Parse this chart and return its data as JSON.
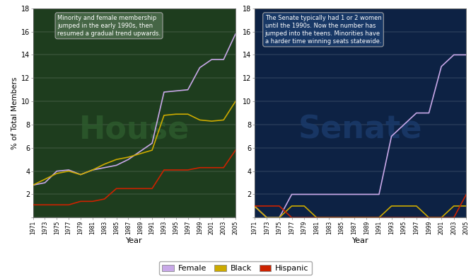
{
  "years": [
    1971,
    1973,
    1975,
    1977,
    1979,
    1981,
    1983,
    1985,
    1987,
    1989,
    1991,
    1993,
    1995,
    1997,
    1999,
    2001,
    2003,
    2005
  ],
  "house_female": [
    2.8,
    3.0,
    4.0,
    4.1,
    3.7,
    4.1,
    4.3,
    4.5,
    5.0,
    5.7,
    6.4,
    10.8,
    10.9,
    11.0,
    12.9,
    13.6,
    13.6,
    15.8
  ],
  "house_black": [
    2.8,
    3.3,
    3.8,
    4.0,
    3.7,
    4.1,
    4.6,
    5.0,
    5.2,
    5.5,
    5.8,
    8.8,
    8.9,
    8.9,
    8.4,
    8.3,
    8.4,
    10.0
  ],
  "house_hispanic": [
    1.1,
    1.1,
    1.1,
    1.1,
    1.4,
    1.4,
    1.6,
    2.5,
    2.5,
    2.5,
    2.5,
    4.1,
    4.1,
    4.1,
    4.3,
    4.3,
    4.3,
    5.8
  ],
  "senate_female": [
    1.0,
    0.0,
    0.0,
    2.0,
    2.0,
    2.0,
    2.0,
    2.0,
    2.0,
    2.0,
    2.0,
    7.0,
    8.0,
    9.0,
    9.0,
    13.0,
    14.0,
    14.0
  ],
  "senate_black": [
    1.0,
    0.0,
    0.0,
    1.0,
    1.0,
    0.0,
    0.0,
    0.0,
    0.0,
    0.0,
    0.0,
    1.0,
    1.0,
    1.0,
    0.0,
    0.0,
    1.0,
    1.0
  ],
  "senate_hispanic": [
    1.0,
    1.0,
    1.0,
    0.0,
    0.0,
    0.0,
    0.0,
    0.0,
    0.0,
    0.0,
    0.0,
    0.0,
    0.0,
    0.0,
    0.0,
    0.0,
    0.0,
    2.0
  ],
  "house_bg": "#1e3d1e",
  "senate_bg": "#0d2244",
  "female_color": "#c8a8e8",
  "black_color": "#ccaa00",
  "hispanic_color": "#cc2200",
  "fig_bg": "#ffffff",
  "ylim": [
    0,
    18
  ],
  "yticks": [
    0,
    2,
    4,
    6,
    8,
    10,
    12,
    14,
    16,
    18
  ],
  "ylabel": "% of Total Members",
  "xlabel": "Year",
  "house_annotation": "Minority and female membership\njumped in the early 1990s, then\nresumed a gradual trend upwards.",
  "senate_annotation": "The Senate typically had 1 or 2 women\nuntil the 1990s. Now the number has\njumped into the teens. Minorities have\na harder time winning seats statewide.",
  "house_label": "House",
  "senate_label": "Senate"
}
